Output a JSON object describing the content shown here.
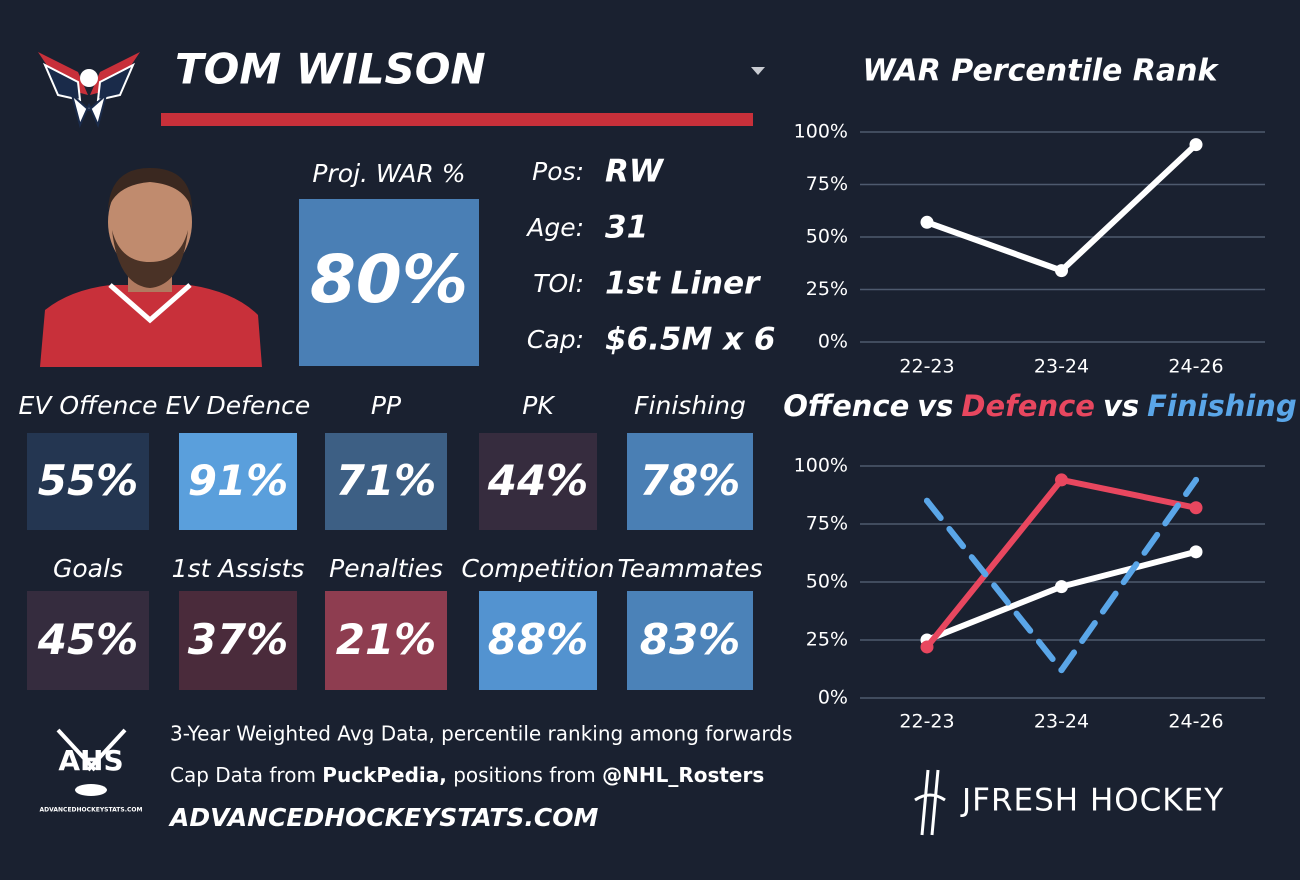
{
  "header": {
    "player_name": "TOM WILSON"
  },
  "projection": {
    "label": "Proj. WAR %",
    "value": "80%",
    "color": "#4a7fb5"
  },
  "info": [
    {
      "label": "Pos:",
      "value": "RW"
    },
    {
      "label": "Age:",
      "value": "31"
    },
    {
      "label": "TOI:",
      "value": "1st Liner"
    },
    {
      "label": "Cap:",
      "value": "$6.5M x 6"
    }
  ],
  "tiles": [
    {
      "label": "EV Offence",
      "value": "55%",
      "color": "#243651"
    },
    {
      "label": "EV Defence",
      "value": "91%",
      "color": "#5a9fdc"
    },
    {
      "label": "PP",
      "value": "71%",
      "color": "#3d5f84"
    },
    {
      "label": "PK",
      "value": "44%",
      "color": "#362c3e"
    },
    {
      "label": "Finishing",
      "value": "78%",
      "color": "#4a7fb4"
    },
    {
      "label": "Goals",
      "value": "45%",
      "color": "#352c3e"
    },
    {
      "label": "1st Assists",
      "value": "37%",
      "color": "#4a2b3b"
    },
    {
      "label": "Penalties",
      "value": "21%",
      "color": "#8e3d50"
    },
    {
      "label": "Competition",
      "value": "88%",
      "color": "#5393d0"
    },
    {
      "label": "Teammates",
      "value": "83%",
      "color": "#4b82b8"
    }
  ],
  "footer": {
    "note": "3-Year Weighted Avg Data, percentile ranking among forwards",
    "source_parts": [
      "Cap Data from ",
      "PuckPedia,",
      " positions from ",
      "@NHL_Rosters"
    ],
    "website": "ADVANCEDHOCKEYSTATS.COM",
    "ahs_logo": "AHS",
    "ahs_logo_caption": "ADVANCEDHOCKEYSTATS.COM",
    "brand": "JFRESH HOCKEY"
  },
  "chart_data": [
    {
      "type": "line",
      "title": "WAR Percentile Rank",
      "categories": [
        "22-23",
        "23-24",
        "24-26"
      ],
      "values": [
        57,
        34,
        94
      ],
      "color": "#ffffff",
      "markers": true,
      "ylim": [
        0,
        100
      ],
      "yticks": [
        {
          "value": 0,
          "label": "0%"
        },
        {
          "value": 25,
          "label": "25%"
        },
        {
          "value": 50,
          "label": "50%"
        },
        {
          "value": 75,
          "label": "75%"
        },
        {
          "value": 100,
          "label": "100%"
        }
      ],
      "grid": true
    },
    {
      "type": "line",
      "title_joiner": "vs",
      "categories": [
        "22-23",
        "23-24",
        "24-26"
      ],
      "series": [
        {
          "name": "Offence",
          "color": "#ffffff",
          "values": [
            25,
            48,
            63
          ],
          "markers": true,
          "dashed": false
        },
        {
          "name": "Defence",
          "color": "#e8475f",
          "values": [
            22,
            94,
            82
          ],
          "markers": true,
          "dashed": false
        },
        {
          "name": "Finishing",
          "color": "#5aa6e8",
          "values": [
            85,
            12,
            94
          ],
          "markers": false,
          "dashed": true
        }
      ],
      "ylim": [
        0,
        100
      ],
      "yticks": [
        {
          "value": 0,
          "label": "0%"
        },
        {
          "value": 25,
          "label": "25%"
        },
        {
          "value": 50,
          "label": "50%"
        },
        {
          "value": 75,
          "label": "75%"
        },
        {
          "value": 100,
          "label": "100%"
        }
      ],
      "grid": true
    }
  ]
}
